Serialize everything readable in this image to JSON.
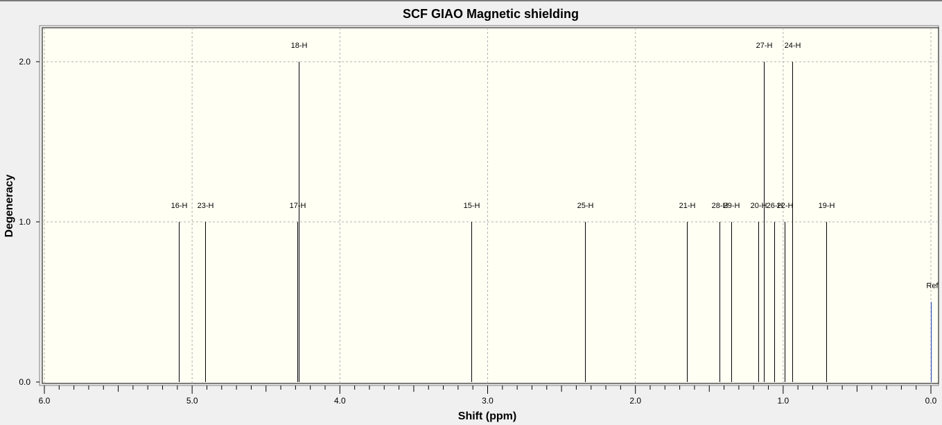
{
  "chart_data": {
    "type": "bar",
    "title": "SCF GIAO Magnetic shielding",
    "xlabel": "Shift (ppm)",
    "ylabel": "Degeneracy",
    "xlim": [
      6.0,
      0.0
    ],
    "ylim": [
      0.0,
      2.2
    ],
    "x_ticks": [
      "6.0",
      "5.0",
      "4.0",
      "3.0",
      "2.0",
      "1.0",
      "0.0"
    ],
    "y_ticks": [
      "0.0",
      "1.0",
      "2.0"
    ],
    "grid": true,
    "colors": {
      "background": "#fffff4",
      "stick": "#000000",
      "reference": "#1f3fb0",
      "grid": "#b0b0b0"
    },
    "peaks": [
      {
        "label": "16-H",
        "x": 5.09,
        "y": 1.0
      },
      {
        "label": "23-H",
        "x": 4.91,
        "y": 1.0
      },
      {
        "label": "17-H",
        "x": 4.29,
        "y": 1.0
      },
      {
        "label": "18-H",
        "x": 4.28,
        "y": 2.0
      },
      {
        "label": "15-H",
        "x": 3.11,
        "y": 1.0
      },
      {
        "label": "25-H",
        "x": 2.34,
        "y": 1.0
      },
      {
        "label": "21-H",
        "x": 1.65,
        "y": 1.0
      },
      {
        "label": "28-H",
        "x": 1.43,
        "y": 1.0
      },
      {
        "label": "29-H",
        "x": 1.35,
        "y": 1.0
      },
      {
        "label": "20-H",
        "x": 1.17,
        "y": 1.0
      },
      {
        "label": "27-H",
        "x": 1.13,
        "y": 2.0
      },
      {
        "label": "26-H",
        "x": 1.06,
        "y": 1.0
      },
      {
        "label": "22-H",
        "x": 0.99,
        "y": 1.0
      },
      {
        "label": "24-H",
        "x": 0.94,
        "y": 2.0
      },
      {
        "label": "19-H",
        "x": 0.71,
        "y": 1.0
      },
      {
        "label": "Ref",
        "x": 0.0,
        "y": 0.5,
        "reference": true
      }
    ]
  }
}
